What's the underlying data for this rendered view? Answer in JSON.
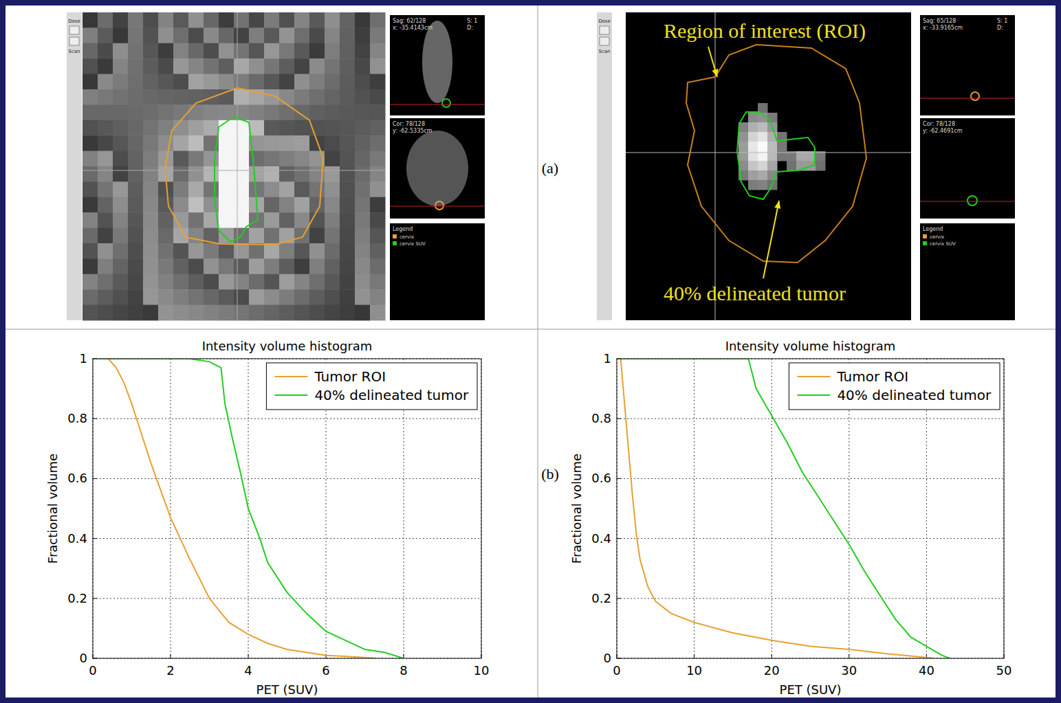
{
  "chart_data": [
    {
      "type": "line",
      "title": "Intensity volume histogram",
      "x_label": "PET (SUV)",
      "y_label": "Fractional volume",
      "xlim": [
        0,
        10
      ],
      "xticks": [
        0,
        2,
        4,
        6,
        8,
        10
      ],
      "ylim": [
        0,
        1
      ],
      "yticks": [
        0,
        0.2,
        0.4,
        0.6,
        0.8,
        1
      ],
      "grid": true,
      "legend": "upper right",
      "series": [
        {
          "name": "Tumor ROI",
          "color": "#e8a030",
          "line_style": "solid",
          "x": [
            0.4,
            0.6,
            0.8,
            1,
            1.2,
            1.5,
            2,
            2.5,
            3,
            3.5,
            4,
            4.5,
            5,
            6,
            7,
            7.3
          ],
          "values": [
            1,
            0.97,
            0.92,
            0.85,
            0.77,
            0.65,
            0.47,
            0.33,
            0.2,
            0.12,
            0.08,
            0.05,
            0.03,
            0.01,
            0.003,
            0
          ]
        },
        {
          "name": "40% delineated tumor",
          "color": "#22cc22",
          "line_style": "solid",
          "x": [
            0,
            2.5,
            3,
            3.3,
            3.4,
            3.6,
            3.8,
            4,
            4.3,
            4.5,
            5,
            5.5,
            6,
            6.5,
            7,
            7.5,
            8
          ],
          "values": [
            1,
            1,
            0.99,
            0.97,
            0.85,
            0.73,
            0.62,
            0.5,
            0.4,
            0.32,
            0.22,
            0.15,
            0.09,
            0.06,
            0.03,
            0.02,
            0
          ]
        }
      ]
    },
    {
      "type": "line",
      "title": "Intensity volume histogram",
      "x_label": "PET (SUV)",
      "y_label": "Fractional volume",
      "xlim": [
        0,
        50
      ],
      "xticks": [
        0,
        10,
        20,
        30,
        40,
        50
      ],
      "ylim": [
        0,
        1
      ],
      "yticks": [
        0,
        0.2,
        0.4,
        0.6,
        0.8,
        1
      ],
      "grid": true,
      "legend": "upper right",
      "series": [
        {
          "name": "Tumor ROI",
          "color": "#e8a030",
          "line_style": "solid",
          "x": [
            0.5,
            1,
            1.5,
            2,
            2.5,
            3,
            4,
            5,
            7,
            10,
            15,
            20,
            25,
            30,
            35,
            40,
            41
          ],
          "values": [
            1,
            0.85,
            0.7,
            0.55,
            0.42,
            0.33,
            0.24,
            0.19,
            0.15,
            0.12,
            0.085,
            0.06,
            0.04,
            0.03,
            0.015,
            0.003,
            0
          ]
        },
        {
          "name": "40% delineated tumor",
          "color": "#22cc22",
          "line_style": "solid",
          "x": [
            0,
            17,
            18,
            20,
            22,
            24,
            26,
            28,
            30,
            32,
            34,
            36,
            38,
            40,
            42,
            43
          ],
          "values": [
            1,
            1,
            0.9,
            0.81,
            0.72,
            0.62,
            0.54,
            0.46,
            0.38,
            0.29,
            0.21,
            0.13,
            0.07,
            0.04,
            0.01,
            0
          ]
        }
      ]
    }
  ],
  "figure_labels": [
    "(a)",
    "(b)"
  ],
  "images": [
    {
      "controls": [
        "Dose",
        "Scan"
      ],
      "slice": "S: 1",
      "dose": "D:",
      "views": [
        {
          "label": "Sag: 62/128",
          "coord": "x: -35.4143cm"
        },
        {
          "label": "Cor: 78/128",
          "coord": "y: -62.5335cm"
        }
      ],
      "legend_title": "Legend",
      "legend_items": [
        "cervix",
        "cervix SUV"
      ],
      "annotations": []
    },
    {
      "controls": [
        "Dose",
        "Scan"
      ],
      "slice": "S: 1",
      "dose": "D:",
      "views": [
        {
          "label": "Sag: 65/128",
          "coord": "x: -33.9165cm"
        },
        {
          "label": "Cor: 78/128",
          "coord": "y: -62.4691cm"
        }
      ],
      "legend_title": "Legend",
      "legend_items": [
        "cervix",
        "cervix SUV"
      ],
      "annotations": [
        "Region of interest (ROI)",
        "40% delineated tumor"
      ]
    }
  ]
}
